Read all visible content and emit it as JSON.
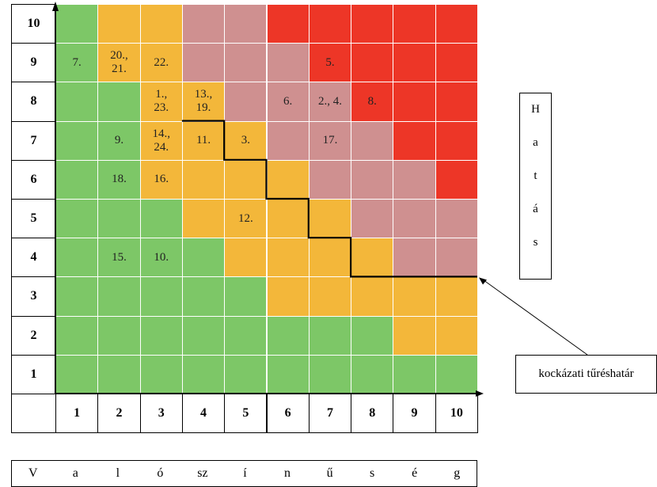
{
  "colors": {
    "green": "#7dc767",
    "orange": "#f3b73a",
    "pink": "#cf9090",
    "red": "#ed3627",
    "boundary": "#000000"
  },
  "rows": [
    "10",
    "9",
    "8",
    "7",
    "6",
    "5",
    "4",
    "3",
    "2",
    "1"
  ],
  "columns": [
    "1",
    "2",
    "3",
    "4",
    "5",
    "6",
    "7",
    "8",
    "9",
    "10"
  ],
  "grid_colors": [
    [
      "green",
      "orange",
      "orange",
      "pink",
      "pink",
      "red",
      "red",
      "red",
      "red",
      "red"
    ],
    [
      "green",
      "orange",
      "orange",
      "pink",
      "pink",
      "pink",
      "red",
      "red",
      "red",
      "red"
    ],
    [
      "green",
      "green",
      "orange",
      "orange",
      "pink",
      "pink",
      "pink",
      "red",
      "red",
      "red"
    ],
    [
      "green",
      "green",
      "orange",
      "orange",
      "orange",
      "pink",
      "pink",
      "pink",
      "red",
      "red"
    ],
    [
      "green",
      "green",
      "orange",
      "orange",
      "orange",
      "orange",
      "pink",
      "pink",
      "pink",
      "red"
    ],
    [
      "green",
      "green",
      "green",
      "orange",
      "orange",
      "orange",
      "orange",
      "pink",
      "pink",
      "pink"
    ],
    [
      "green",
      "green",
      "green",
      "green",
      "orange",
      "orange",
      "orange",
      "orange",
      "pink",
      "pink"
    ],
    [
      "green",
      "green",
      "green",
      "green",
      "green",
      "orange",
      "orange",
      "orange",
      "orange",
      "orange"
    ],
    [
      "green",
      "green",
      "green",
      "green",
      "green",
      "green",
      "green",
      "green",
      "orange",
      "orange"
    ],
    [
      "green",
      "green",
      "green",
      "green",
      "green",
      "green",
      "green",
      "green",
      "green",
      "green"
    ]
  ],
  "grid_labels": [
    [
      "",
      "",
      "",
      "",
      "",
      "",
      "",
      "",
      "",
      ""
    ],
    [
      "7.",
      "20.,\n21.",
      "22.",
      "",
      "",
      "",
      "5.",
      "",
      "",
      ""
    ],
    [
      "",
      "",
      "1.,\n23.",
      "13.,\n19.",
      "",
      "6.",
      "2., 4.",
      "8.",
      "",
      ""
    ],
    [
      "",
      "9.",
      "14.,\n24.",
      "11.",
      "3.",
      "",
      "17.",
      "",
      "",
      ""
    ],
    [
      "",
      "18.",
      "16.",
      "",
      "",
      "",
      "",
      "",
      "",
      ""
    ],
    [
      "",
      "",
      "",
      "",
      "12.",
      "",
      "",
      "",
      "",
      ""
    ],
    [
      "",
      "15.",
      "10.",
      "",
      "",
      "",
      "",
      "",
      "",
      ""
    ],
    [
      "",
      "",
      "",
      "",
      "",
      "",
      "",
      "",
      "",
      ""
    ],
    [
      "",
      "",
      "",
      "",
      "",
      "",
      "",
      "",
      "",
      ""
    ],
    [
      "",
      "",
      "",
      "",
      "",
      "",
      "",
      "",
      "",
      ""
    ]
  ],
  "tolerance_boundary_row_boundaries": [
    2,
    2,
    2,
    3,
    4,
    5,
    6,
    7,
    7,
    7
  ],
  "x_axis_title_letters": [
    "V",
    "a",
    "l",
    "ó",
    "sz",
    "í",
    "n",
    "ű",
    "s",
    "é",
    "g"
  ],
  "y_axis_title_letters": [
    "H",
    "a",
    "t",
    "á",
    "s"
  ],
  "risk_tolerance_label": "kockázati tűréshatár"
}
